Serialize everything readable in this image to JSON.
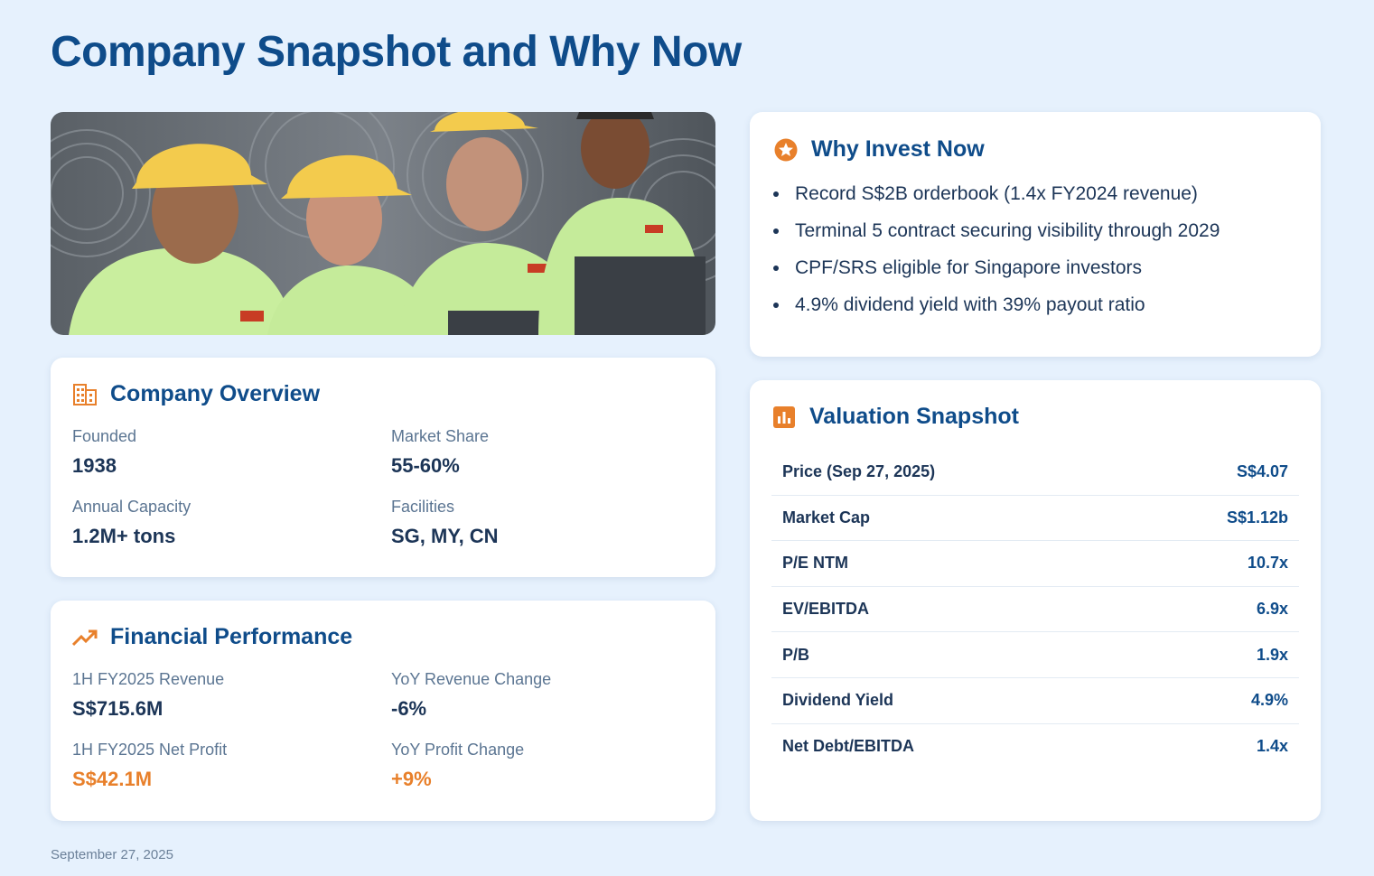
{
  "page": {
    "title": "Company Snapshot and Why Now",
    "footer_date": "September 27, 2025",
    "accent": "#e8802b",
    "brand": "#0f4c8a"
  },
  "hero": {
    "icon": "workers-photo"
  },
  "overview": {
    "title": "Company Overview",
    "icon": "building-icon",
    "items": [
      {
        "label": "Founded",
        "value": "1938"
      },
      {
        "label": "Market Share",
        "value": "55-60%"
      },
      {
        "label": "Annual Capacity",
        "value": "1.2M+ tons"
      },
      {
        "label": "Facilities",
        "value": "SG, MY, CN"
      }
    ]
  },
  "financial": {
    "title": "Financial Performance",
    "icon": "trending-up-icon",
    "items": [
      {
        "label": "1H FY2025 Revenue",
        "value": "S$715.6M"
      },
      {
        "label": "YoY Revenue Change",
        "value": "-6%"
      },
      {
        "label": "1H FY2025 Net Profit",
        "value": "S$42.1M"
      },
      {
        "label": "YoY Profit Change",
        "value": "+9%"
      }
    ]
  },
  "why": {
    "title": "Why Invest Now",
    "icon": "star-icon",
    "bullets": [
      "Record S$2B orderbook (1.4x FY2024 revenue)",
      "Terminal 5 contract securing visibility through 2029",
      "CPF/SRS eligible for Singapore investors",
      "4.9% dividend yield with 39% payout ratio"
    ]
  },
  "valuation": {
    "title": "Valuation Snapshot",
    "icon": "bar-chart-icon",
    "rows": [
      {
        "key": "Price (Sep 27, 2025)",
        "value": "S$4.07"
      },
      {
        "key": "Market Cap",
        "value": "S$1.12b"
      },
      {
        "key": "P/E NTM",
        "value": "10.7x"
      },
      {
        "key": "EV/EBITDA",
        "value": "6.9x"
      },
      {
        "key": "P/B",
        "value": "1.9x"
      },
      {
        "key": "Dividend Yield",
        "value": "4.9%"
      },
      {
        "key": "Net Debt/EBITDA",
        "value": "1.4x"
      }
    ]
  }
}
